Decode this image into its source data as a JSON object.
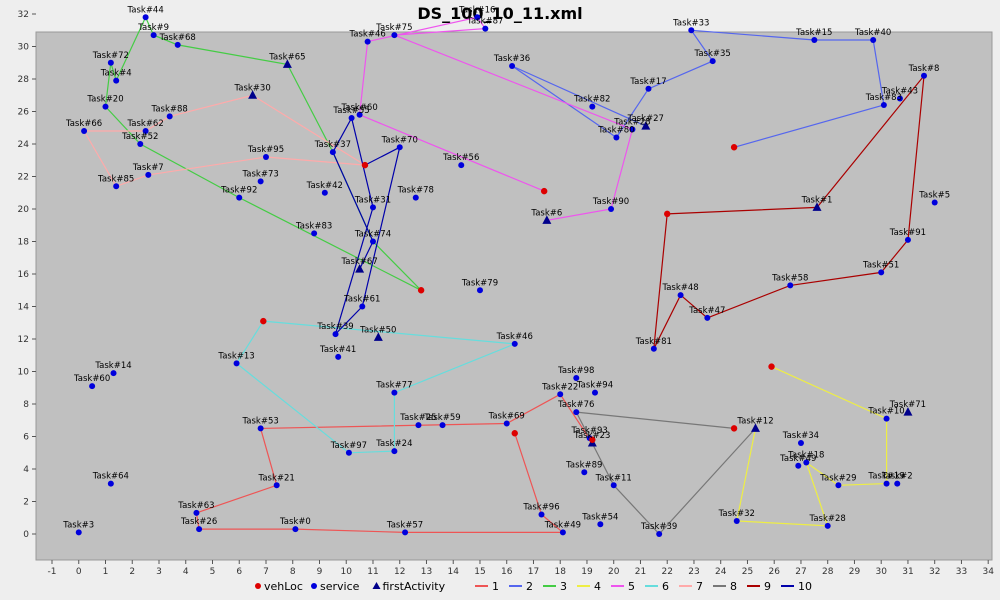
{
  "chart_data": {
    "type": "scatter",
    "title": "DS_100_10_11.xml",
    "xlim": [
      -1,
      34
    ],
    "ylim": [
      -1,
      33
    ],
    "x_ticks": [
      -1,
      0,
      1,
      2,
      3,
      4,
      5,
      6,
      7,
      8,
      9,
      10,
      11,
      12,
      13,
      14,
      15,
      16,
      17,
      18,
      19,
      20,
      21,
      22,
      23,
      24,
      25,
      26,
      27,
      28,
      29,
      30,
      31,
      32,
      33,
      34
    ],
    "y_ticks": [
      0,
      2,
      4,
      6,
      8,
      10,
      12,
      14,
      16,
      18,
      20,
      22,
      24,
      26,
      28,
      30,
      32
    ],
    "legend": {
      "placement": "bottom",
      "markers": [
        {
          "name": "vehLoc",
          "shape": "circle",
          "color": "#dd0000"
        },
        {
          "name": "service",
          "shape": "circle",
          "color": "#0000dd"
        },
        {
          "name": "firstActivity",
          "shape": "triangle",
          "color": "#00008b"
        }
      ],
      "routes": [
        {
          "name": "1",
          "color": "#ee5555"
        },
        {
          "name": "2",
          "color": "#5566ee"
        },
        {
          "name": "3",
          "color": "#44cc44"
        },
        {
          "name": "4",
          "color": "#eeee44"
        },
        {
          "name": "5",
          "color": "#ee55ee"
        },
        {
          "name": "6",
          "color": "#66dddd"
        },
        {
          "name": "7",
          "color": "#ffaaaa"
        },
        {
          "name": "8",
          "color": "#777777"
        },
        {
          "name": "9",
          "color": "#aa0000"
        },
        {
          "name": "10",
          "color": "#0000aa"
        }
      ]
    },
    "vehicle_locations": [
      {
        "x": 10.7,
        "y": 22.7
      },
      {
        "x": 17.4,
        "y": 21.1
      },
      {
        "x": 24.5,
        "y": 23.8
      },
      {
        "x": 22.0,
        "y": 19.7
      },
      {
        "x": 12.8,
        "y": 15.0
      },
      {
        "x": 6.9,
        "y": 13.1
      },
      {
        "x": 25.9,
        "y": 10.3
      },
      {
        "x": 24.5,
        "y": 6.5
      },
      {
        "x": 16.3,
        "y": 6.2
      },
      {
        "x": 19.2,
        "y": 5.8
      }
    ],
    "points": [
      {
        "label": "Task#44",
        "x": 2.5,
        "y": 31.8,
        "first": false
      },
      {
        "label": "Task#9",
        "x": 2.8,
        "y": 30.7,
        "first": false
      },
      {
        "label": "Task#68",
        "x": 3.7,
        "y": 30.1,
        "first": false
      },
      {
        "label": "Task#72",
        "x": 1.2,
        "y": 29.0,
        "first": false
      },
      {
        "label": "Task#4",
        "x": 1.4,
        "y": 27.9,
        "first": false
      },
      {
        "label": "Task#65",
        "x": 7.8,
        "y": 28.9,
        "first": true
      },
      {
        "label": "Task#20",
        "x": 1.0,
        "y": 26.3,
        "first": false
      },
      {
        "label": "Task#30",
        "x": 6.5,
        "y": 27.0,
        "first": true
      },
      {
        "label": "Task#88",
        "x": 3.4,
        "y": 25.7,
        "first": false
      },
      {
        "label": "Task#62",
        "x": 2.5,
        "y": 24.8,
        "first": false
      },
      {
        "label": "Task#66",
        "x": 0.2,
        "y": 24.8,
        "first": false
      },
      {
        "label": "Task#52",
        "x": 2.3,
        "y": 24.0,
        "first": false
      },
      {
        "label": "Task#95",
        "x": 7.0,
        "y": 23.2,
        "first": false
      },
      {
        "label": "Task#7",
        "x": 2.6,
        "y": 22.1,
        "first": false
      },
      {
        "label": "Task#85",
        "x": 1.4,
        "y": 21.4,
        "first": false
      },
      {
        "label": "Task#73",
        "x": 6.8,
        "y": 21.7,
        "first": false
      },
      {
        "label": "Task#92",
        "x": 6.0,
        "y": 20.7,
        "first": false
      },
      {
        "label": "Task#42",
        "x": 9.2,
        "y": 21.0,
        "first": false
      },
      {
        "label": "Task#16",
        "x": 14.9,
        "y": 31.8,
        "first": false
      },
      {
        "label": "Task#87",
        "x": 15.2,
        "y": 31.1,
        "first": false
      },
      {
        "label": "Task#75",
        "x": 11.8,
        "y": 30.7,
        "first": false
      },
      {
        "label": "Task#46",
        "x": 10.8,
        "y": 30.3,
        "first": false
      },
      {
        "label": "Task#36",
        "x": 16.2,
        "y": 28.8,
        "first": false
      },
      {
        "label": "Task#33",
        "x": 22.9,
        "y": 31.0,
        "first": false
      },
      {
        "label": "Task#15",
        "x": 27.5,
        "y": 30.4,
        "first": false
      },
      {
        "label": "Task#40",
        "x": 29.7,
        "y": 30.4,
        "first": false
      },
      {
        "label": "Task#35",
        "x": 23.7,
        "y": 29.1,
        "first": false
      },
      {
        "label": "Task#8",
        "x": 31.6,
        "y": 28.2,
        "first": false
      },
      {
        "label": "Task#17",
        "x": 21.3,
        "y": 27.4,
        "first": false
      },
      {
        "label": "Task#82",
        "x": 19.2,
        "y": 26.3,
        "first": false
      },
      {
        "label": "Task#43",
        "x": 30.7,
        "y": 26.8,
        "first": false
      },
      {
        "label": "Task#83b",
        "x": 30.1,
        "y": 26.4,
        "first": false
      },
      {
        "label": "Task#27",
        "x": 21.2,
        "y": 25.1,
        "first": true
      },
      {
        "label": "Task#28",
        "x": 20.7,
        "y": 24.9,
        "first": false
      },
      {
        "label": "Task#80",
        "x": 20.1,
        "y": 24.4,
        "first": false
      },
      {
        "label": "Task#60b",
        "x": 10.5,
        "y": 25.8,
        "first": false
      },
      {
        "label": "Task#55",
        "x": 10.2,
        "y": 25.6,
        "first": false
      },
      {
        "label": "Task#70",
        "x": 12.0,
        "y": 23.8,
        "first": false
      },
      {
        "label": "Task#37",
        "x": 9.5,
        "y": 23.5,
        "first": false
      },
      {
        "label": "Task#56",
        "x": 14.3,
        "y": 22.7,
        "first": false
      },
      {
        "label": "Task#78",
        "x": 12.6,
        "y": 20.7,
        "first": false
      },
      {
        "label": "Task#31",
        "x": 11.0,
        "y": 20.1,
        "first": false
      },
      {
        "label": "Task#1",
        "x": 27.6,
        "y": 20.1,
        "first": true
      },
      {
        "label": "Task#5",
        "x": 32.0,
        "y": 20.4,
        "first": false
      },
      {
        "label": "Task#6",
        "x": 17.5,
        "y": 19.3,
        "first": true
      },
      {
        "label": "Task#90",
        "x": 19.9,
        "y": 20.0,
        "first": false
      },
      {
        "label": "Task#91",
        "x": 31.0,
        "y": 18.1,
        "first": false
      },
      {
        "label": "Task#83",
        "x": 8.8,
        "y": 18.5,
        "first": false
      },
      {
        "label": "Task#74",
        "x": 11.0,
        "y": 18.0,
        "first": false
      },
      {
        "label": "Task#67",
        "x": 10.5,
        "y": 16.3,
        "first": true
      },
      {
        "label": "Task#51",
        "x": 30.0,
        "y": 16.1,
        "first": false
      },
      {
        "label": "Task#58",
        "x": 26.6,
        "y": 15.3,
        "first": false
      },
      {
        "label": "Task#79",
        "x": 15.0,
        "y": 15.0,
        "first": false
      },
      {
        "label": "Task#61",
        "x": 10.6,
        "y": 14.0,
        "first": false
      },
      {
        "label": "Task#48",
        "x": 22.5,
        "y": 14.7,
        "first": false
      },
      {
        "label": "Task#47",
        "x": 23.5,
        "y": 13.3,
        "first": false
      },
      {
        "label": "Task#39b",
        "x": 9.6,
        "y": 12.3,
        "first": false
      },
      {
        "label": "Task#50",
        "x": 11.2,
        "y": 12.1,
        "first": true
      },
      {
        "label": "Task#46b",
        "x": 16.3,
        "y": 11.7,
        "first": false
      },
      {
        "label": "Task#81",
        "x": 21.5,
        "y": 11.4,
        "first": false
      },
      {
        "label": "Task#41",
        "x": 9.7,
        "y": 10.9,
        "first": false
      },
      {
        "label": "Task#14",
        "x": 1.3,
        "y": 9.9,
        "first": false
      },
      {
        "label": "Task#13",
        "x": 5.9,
        "y": 10.5,
        "first": false
      },
      {
        "label": "Task#60",
        "x": 0.5,
        "y": 9.1,
        "first": false
      },
      {
        "label": "Task#98",
        "x": 18.6,
        "y": 9.6,
        "first": false
      },
      {
        "label": "Task#22",
        "x": 18.0,
        "y": 8.6,
        "first": false
      },
      {
        "label": "Task#94",
        "x": 19.3,
        "y": 8.7,
        "first": false
      },
      {
        "label": "Task#77",
        "x": 11.8,
        "y": 8.7,
        "first": false
      },
      {
        "label": "Task#76",
        "x": 18.6,
        "y": 7.5,
        "first": false
      },
      {
        "label": "Task#71",
        "x": 31.0,
        "y": 7.5,
        "first": true
      },
      {
        "label": "Task#10",
        "x": 30.2,
        "y": 7.1,
        "first": false
      },
      {
        "label": "Task#25",
        "x": 12.7,
        "y": 6.7,
        "first": false
      },
      {
        "label": "Task#59",
        "x": 13.6,
        "y": 6.7,
        "first": false
      },
      {
        "label": "Task#69",
        "x": 16.0,
        "y": 6.8,
        "first": false
      },
      {
        "label": "Task#53",
        "x": 6.8,
        "y": 6.5,
        "first": false
      },
      {
        "label": "Task#12",
        "x": 25.3,
        "y": 6.5,
        "first": true
      },
      {
        "label": "Task#93",
        "x": 19.1,
        "y": 5.9,
        "first": false
      },
      {
        "label": "Task#23",
        "x": 19.2,
        "y": 5.6,
        "first": true
      },
      {
        "label": "Task#34",
        "x": 27.0,
        "y": 5.6,
        "first": false
      },
      {
        "label": "Task#97",
        "x": 10.1,
        "y": 5.0,
        "first": false
      },
      {
        "label": "Task#24",
        "x": 11.8,
        "y": 5.1,
        "first": false
      },
      {
        "label": "Task#18",
        "x": 27.2,
        "y": 4.4,
        "first": false
      },
      {
        "label": "Task#89",
        "x": 18.9,
        "y": 3.8,
        "first": false
      },
      {
        "label": "Task#49b",
        "x": 26.9,
        "y": 4.2,
        "first": false
      },
      {
        "label": "Task#29",
        "x": 28.4,
        "y": 3.0,
        "first": false
      },
      {
        "label": "Task#19",
        "x": 30.2,
        "y": 3.1,
        "first": false
      },
      {
        "label": "Task#2",
        "x": 30.6,
        "y": 3.1,
        "first": false
      },
      {
        "label": "Task#64",
        "x": 1.2,
        "y": 3.1,
        "first": false
      },
      {
        "label": "Task#21",
        "x": 7.4,
        "y": 3.0,
        "first": false
      },
      {
        "label": "Task#11",
        "x": 20.0,
        "y": 3.0,
        "first": false
      },
      {
        "label": "Task#63",
        "x": 4.4,
        "y": 1.3,
        "first": false
      },
      {
        "label": "Task#96",
        "x": 17.3,
        "y": 1.2,
        "first": false
      },
      {
        "label": "Task#32",
        "x": 24.6,
        "y": 0.8,
        "first": false
      },
      {
        "label": "Task#28b",
        "x": 28.0,
        "y": 0.5,
        "first": false
      },
      {
        "label": "Task#54",
        "x": 19.5,
        "y": 0.6,
        "first": false
      },
      {
        "label": "Task#39",
        "x": 21.7,
        "y": 0.0,
        "first": false
      },
      {
        "label": "Task#26",
        "x": 4.5,
        "y": 0.3,
        "first": false
      },
      {
        "label": "Task#0",
        "x": 8.1,
        "y": 0.3,
        "first": false
      },
      {
        "label": "Task#57",
        "x": 12.2,
        "y": 0.1,
        "first": false
      },
      {
        "label": "Task#49",
        "x": 18.1,
        "y": 0.1,
        "first": false
      },
      {
        "label": "Task#3",
        "x": 0.0,
        "y": 0.1,
        "first": false
      }
    ],
    "routes": [
      {
        "name": "1",
        "color": "#ee5555",
        "path": [
          [
            16.3,
            6.2
          ],
          [
            17.3,
            1.2
          ],
          [
            18.1,
            0.1
          ],
          [
            12.2,
            0.1
          ],
          [
            8.1,
            0.3
          ],
          [
            4.5,
            0.3
          ],
          [
            4.4,
            1.3
          ],
          [
            7.4,
            3.0
          ],
          [
            6.8,
            6.5
          ],
          [
            16.0,
            6.8
          ],
          [
            18.0,
            8.6
          ],
          [
            19.2,
            5.6
          ]
        ]
      },
      {
        "name": "2",
        "color": "#5566ee",
        "path": [
          [
            24.5,
            23.8
          ],
          [
            30.1,
            26.4
          ],
          [
            29.7,
            30.4
          ],
          [
            27.5,
            30.4
          ],
          [
            22.9,
            31.0
          ],
          [
            23.7,
            29.1
          ],
          [
            21.3,
            27.4
          ],
          [
            20.1,
            24.4
          ],
          [
            16.2,
            28.8
          ],
          [
            21.2,
            25.1
          ]
        ]
      },
      {
        "name": "3",
        "color": "#44cc44",
        "path": [
          [
            12.8,
            15.0
          ],
          [
            11.0,
            18.0
          ],
          [
            9.5,
            23.5
          ],
          [
            7.8,
            28.9
          ],
          [
            3.7,
            30.1
          ],
          [
            2.8,
            30.7
          ],
          [
            2.5,
            31.8
          ],
          [
            1.4,
            27.9
          ],
          [
            1.2,
            29.0
          ],
          [
            1.0,
            26.3
          ],
          [
            2.3,
            24.0
          ],
          [
            6.0,
            20.7
          ],
          [
            12.8,
            15.0
          ]
        ]
      },
      {
        "name": "4",
        "color": "#eeee44",
        "path": [
          [
            25.9,
            10.3
          ],
          [
            30.2,
            7.1
          ],
          [
            30.2,
            3.1
          ],
          [
            28.4,
            3.0
          ],
          [
            27.2,
            4.4
          ],
          [
            28.0,
            0.5
          ],
          [
            24.6,
            0.8
          ],
          [
            25.3,
            6.5
          ]
        ]
      },
      {
        "name": "5",
        "color": "#ee55ee",
        "path": [
          [
            17.4,
            21.1
          ],
          [
            10.5,
            25.8
          ],
          [
            10.8,
            30.3
          ],
          [
            14.9,
            31.8
          ],
          [
            15.2,
            31.1
          ],
          [
            11.8,
            30.7
          ],
          [
            20.7,
            24.9
          ],
          [
            19.9,
            20.0
          ],
          [
            17.5,
            19.3
          ]
        ]
      },
      {
        "name": "6",
        "color": "#66dddd",
        "path": [
          [
            6.9,
            13.1
          ],
          [
            16.3,
            11.7
          ],
          [
            11.8,
            8.7
          ],
          [
            11.8,
            5.1
          ],
          [
            10.1,
            5.0
          ],
          [
            5.9,
            10.5
          ],
          [
            6.9,
            13.1
          ]
        ]
      },
      {
        "name": "7",
        "color": "#ffaaaa",
        "path": [
          [
            10.7,
            22.7
          ],
          [
            7.0,
            23.2
          ],
          [
            2.6,
            22.1
          ],
          [
            1.4,
            21.4
          ],
          [
            0.2,
            24.8
          ],
          [
            2.5,
            24.8
          ],
          [
            3.4,
            25.7
          ],
          [
            6.5,
            27.0
          ],
          [
            10.7,
            22.7
          ]
        ]
      },
      {
        "name": "8",
        "color": "#777777",
        "path": [
          [
            24.5,
            6.5
          ],
          [
            18.6,
            7.5
          ],
          [
            19.1,
            5.9
          ],
          [
            20.0,
            3.0
          ],
          [
            21.7,
            0.0
          ],
          [
            25.3,
            6.5
          ]
        ]
      },
      {
        "name": "9",
        "color": "#aa0000",
        "path": [
          [
            22.0,
            19.7
          ],
          [
            27.6,
            20.1
          ],
          [
            31.6,
            28.2
          ],
          [
            31.0,
            18.1
          ],
          [
            30.0,
            16.1
          ],
          [
            26.6,
            15.3
          ],
          [
            23.5,
            13.3
          ],
          [
            22.5,
            14.7
          ],
          [
            21.5,
            11.4
          ],
          [
            22.0,
            19.7
          ]
        ]
      },
      {
        "name": "10",
        "color": "#0000aa",
        "path": [
          [
            10.7,
            22.7
          ],
          [
            12.0,
            23.8
          ],
          [
            10.6,
            14.0
          ],
          [
            9.6,
            12.3
          ],
          [
            11.0,
            20.1
          ],
          [
            10.2,
            25.6
          ],
          [
            9.5,
            23.5
          ],
          [
            11.0,
            18.0
          ],
          [
            10.5,
            16.3
          ]
        ]
      }
    ]
  }
}
